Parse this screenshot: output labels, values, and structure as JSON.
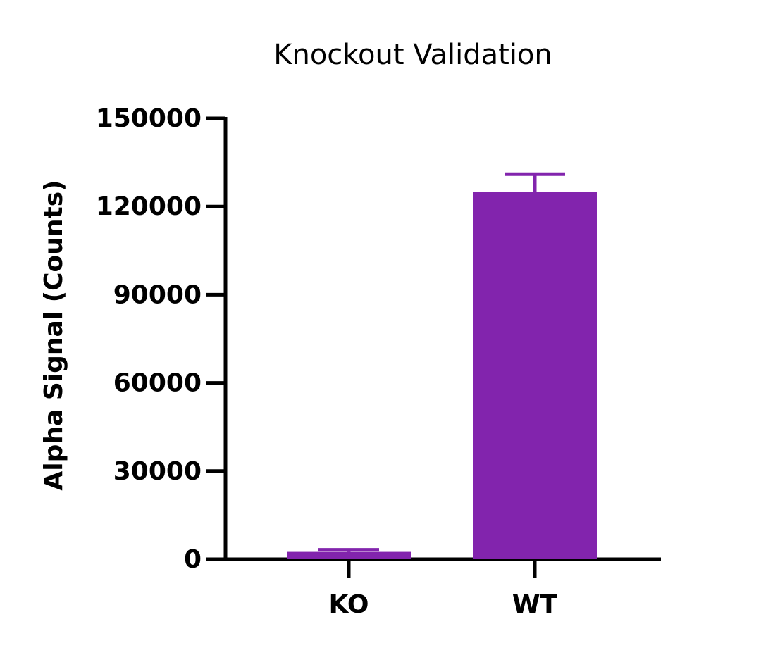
{
  "chart_data": {
    "type": "bar",
    "title": "Knockout Validation",
    "y_label": "Alpha Signal (Counts)",
    "categories": [
      "KO",
      "WT"
    ],
    "values": [
      2500,
      125000
    ],
    "errors": [
      700,
      6000
    ],
    "color": "#8224ad",
    "ylim": [
      0,
      150000
    ],
    "yticks": [
      0,
      30000,
      60000,
      90000,
      120000,
      150000
    ]
  }
}
